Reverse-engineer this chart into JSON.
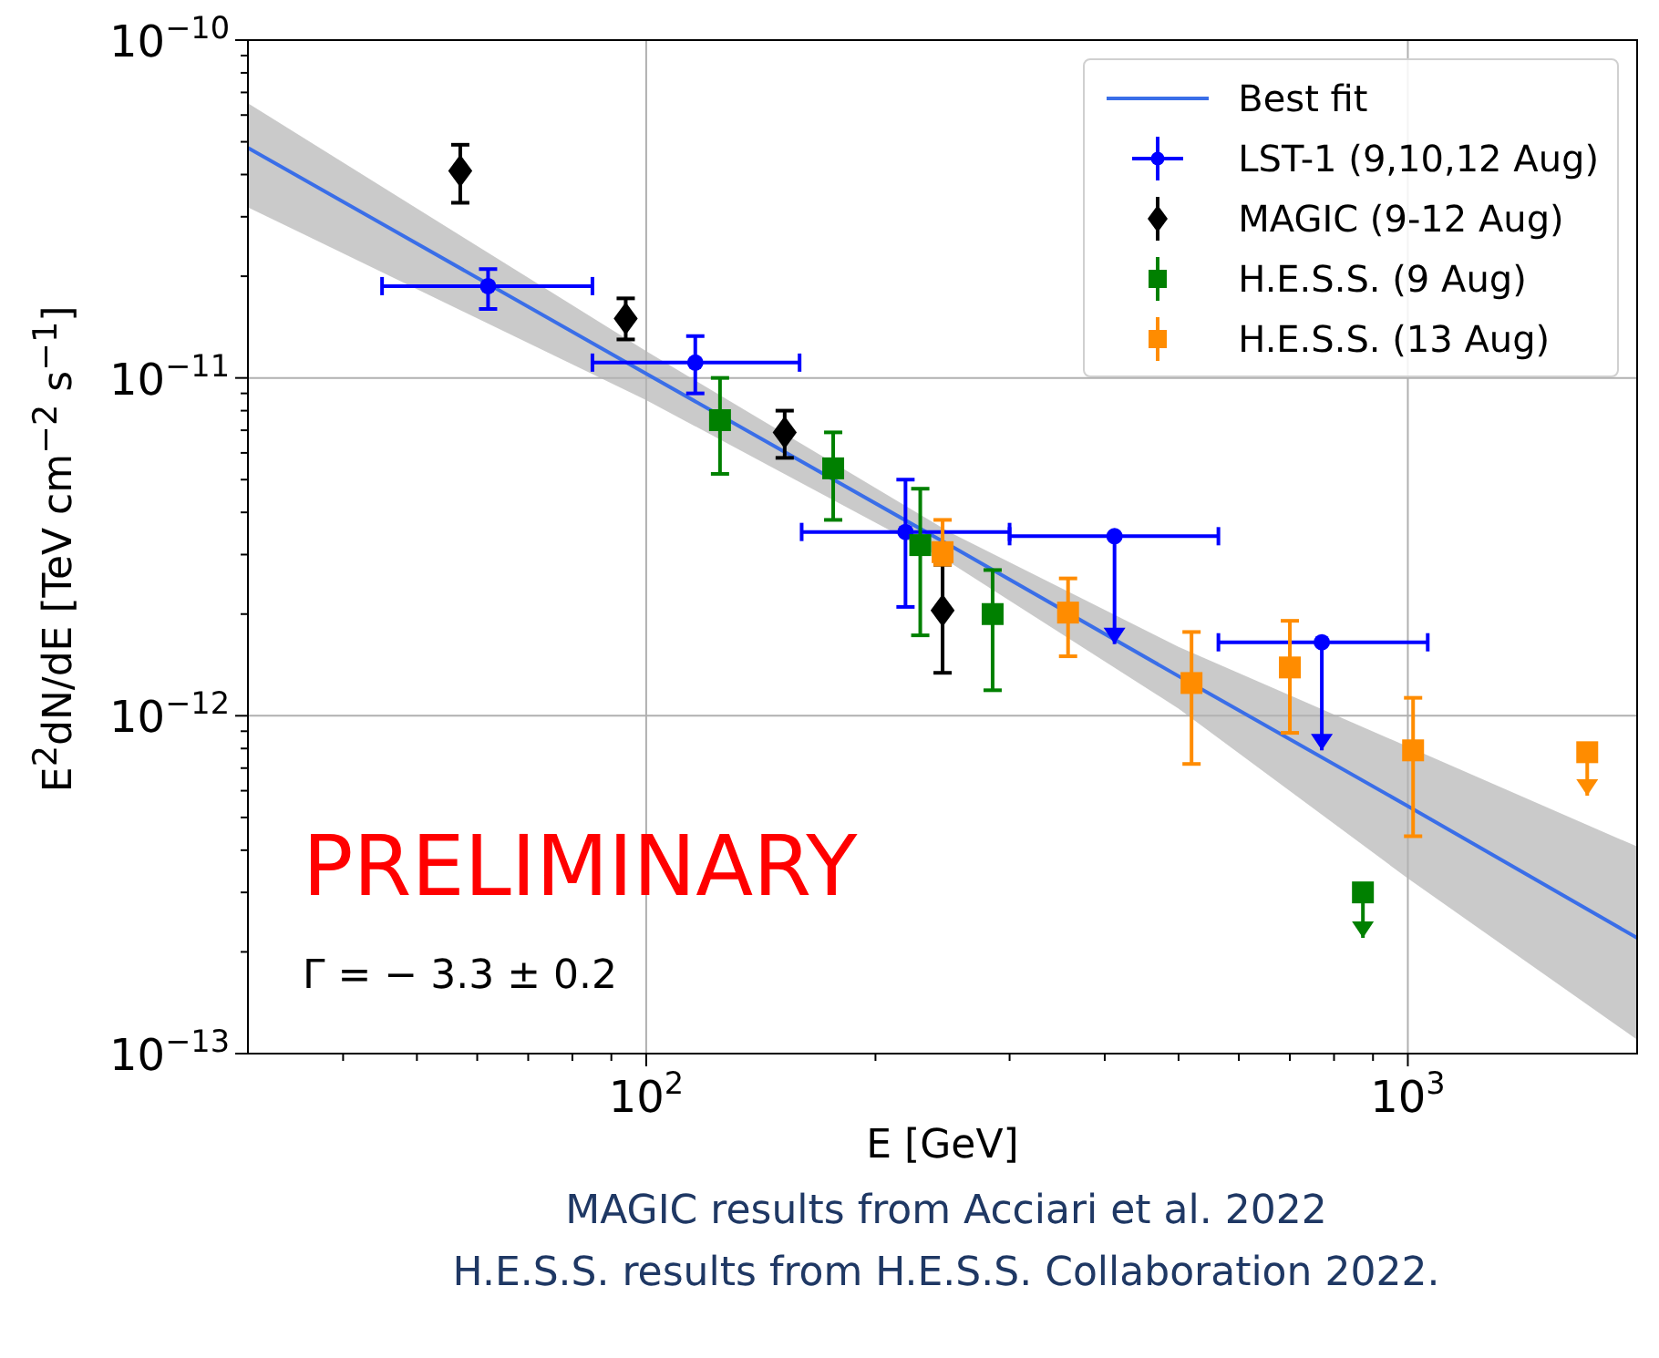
{
  "chart_data": {
    "type": "scatter",
    "xlabel": "E [GeV]",
    "ylabel": "E$^{2}$dN/dE [TeV cm$^{−2}$ s$^{−1}$]",
    "log": "xy",
    "grid": true,
    "legend": "top right",
    "xlim": [
      30,
      2000
    ],
    "ylim": [
      1e-13,
      1e-10
    ],
    "xticks": [
      {
        "value": 40,
        "label": null
      },
      {
        "value": 50,
        "label": null
      },
      {
        "value": 60,
        "label": null
      },
      {
        "value": 70,
        "label": null
      },
      {
        "value": 80,
        "label": null
      },
      {
        "value": 90,
        "label": null
      },
      {
        "value": 100,
        "label": "10$^{2}$"
      },
      {
        "value": 200,
        "label": null
      },
      {
        "value": 300,
        "label": null
      },
      {
        "value": 400,
        "label": null
      },
      {
        "value": 500,
        "label": null
      },
      {
        "value": 600,
        "label": null
      },
      {
        "value": 700,
        "label": null
      },
      {
        "value": 800,
        "label": null
      },
      {
        "value": 900,
        "label": null
      },
      {
        "value": 1000,
        "label": "10$^{3}$"
      }
    ],
    "yticks": [
      {
        "value": 1e-13,
        "label": "10$^{−13}$"
      },
      {
        "value": 2e-13,
        "label": null
      },
      {
        "value": 3e-13,
        "label": null
      },
      {
        "value": 4e-13,
        "label": null
      },
      {
        "value": 5e-13,
        "label": null
      },
      {
        "value": 6e-13,
        "label": null
      },
      {
        "value": 7e-13,
        "label": null
      },
      {
        "value": 8e-13,
        "label": null
      },
      {
        "value": 9e-13,
        "label": null
      },
      {
        "value": 1e-12,
        "label": "10$^{−12}$"
      },
      {
        "value": 2e-12,
        "label": null
      },
      {
        "value": 3e-12,
        "label": null
      },
      {
        "value": 4e-12,
        "label": null
      },
      {
        "value": 5e-12,
        "label": null
      },
      {
        "value": 6e-12,
        "label": null
      },
      {
        "value": 7e-12,
        "label": null
      },
      {
        "value": 8e-12,
        "label": null
      },
      {
        "value": 9e-12,
        "label": null
      },
      {
        "value": 1e-11,
        "label": "10$^{−11}$"
      },
      {
        "value": 2e-11,
        "label": null
      },
      {
        "value": 3e-11,
        "label": null
      },
      {
        "value": 4e-11,
        "label": null
      },
      {
        "value": 5e-11,
        "label": null
      },
      {
        "value": 6e-11,
        "label": null
      },
      {
        "value": 7e-11,
        "label": null
      },
      {
        "value": 8e-11,
        "label": null
      },
      {
        "value": 9e-11,
        "label": null
      },
      {
        "value": 1e-10,
        "label": "10$^{−10}$"
      }
    ],
    "series": [
      {
        "name": "Best fit",
        "type": "line",
        "color": "#3a6ee8",
        "marker": "none",
        "x": [
          30,
          100,
          250,
          500,
          1000,
          2000
        ],
        "values": [
          4.8e-11,
          1.03e-11,
          3.2e-12,
          1.31e-12,
          5.4e-13,
          2.2e-13
        ],
        "lower": [
          3.2e-11,
          8.6e-12,
          2.85e-12,
          1.05e-12,
          3.3e-13,
          1.1e-13
        ],
        "upper": [
          6.5e-11,
          1.2e-11,
          3.5e-12,
          1.6e-12,
          8.1e-13,
          4.1e-13
        ]
      },
      {
        "name": "LST-1 (9,10,12 Aug)",
        "color": "#0000ff",
        "marker": "circle",
        "x": [
          62,
          116,
          219,
          412,
          771
        ],
        "values": [
          1.87e-11,
          1.11e-11,
          3.5e-12,
          3.4e-12,
          1.65e-12
        ],
        "errors": [
          [
            1.6e-11,
            2.1e-11
          ],
          [
            9e-12,
            1.33e-11
          ],
          [
            2.1e-12,
            5e-12
          ],
          [
            1.63e-12,
            3.4e-12
          ],
          [
            7.9e-13,
            1.65e-12
          ]
        ],
        "xerrors": [
          [
            45,
            85
          ],
          [
            85,
            159
          ],
          [
            160,
            300
          ],
          [
            300,
            564
          ],
          [
            564,
            1062
          ]
        ]
      },
      {
        "name": "MAGIC (9-12 Aug)",
        "color": "#000000",
        "marker": "diamond",
        "x": [
          57,
          94,
          152,
          245
        ],
        "values": [
          4.1e-11,
          1.5e-11,
          6.9e-12,
          2.05e-12
        ],
        "errors": [
          [
            3.3e-11,
            4.9e-11
          ],
          [
            1.3e-11,
            1.72e-11
          ],
          [
            5.8e-12,
            8e-12
          ],
          [
            1.34e-12,
            2.8e-12
          ]
        ]
      },
      {
        "name": "H.E.S.S. (9 Aug)",
        "color": "#008000",
        "marker": "square",
        "x": [
          125,
          176,
          229,
          285,
          873
        ],
        "values": [
          7.5e-12,
          5.4e-12,
          3.2e-12,
          2e-12,
          3e-13
        ],
        "errors": [
          [
            5.2e-12,
            1e-11
          ],
          [
            3.8e-12,
            6.9e-12
          ],
          [
            1.73e-12,
            4.7e-12
          ],
          [
            1.19e-12,
            2.7e-12
          ],
          [
            2.2e-13,
            3e-13
          ]
        ]
      },
      {
        "name": "H.E.S.S. (13 Aug)",
        "color": "#ff8c00",
        "marker": "square",
        "x": [
          245,
          358,
          520,
          700,
          1016,
          1720
        ],
        "values": [
          3.05e-12,
          2.02e-12,
          1.25e-12,
          1.39e-12,
          7.9e-13,
          7.8e-13
        ],
        "errors": [
          [
            2.8e-12,
            3.8e-12
          ],
          [
            1.5e-12,
            2.55e-12
          ],
          [
            7.2e-13,
            1.77e-12
          ],
          [
            8.9e-13,
            1.91e-12
          ],
          [
            4.4e-13,
            1.13e-12
          ],
          [
            5.8e-13,
            7.8e-13
          ]
        ]
      }
    ],
    "annotations": [
      "PRELIMINARY",
      "Γ = − 3.3 ± 0.2",
      "MAGIC results from Acciari et al. 2022",
      "H.E.S.S. results from H.E.S.S. Collaboration 2022."
    ]
  }
}
